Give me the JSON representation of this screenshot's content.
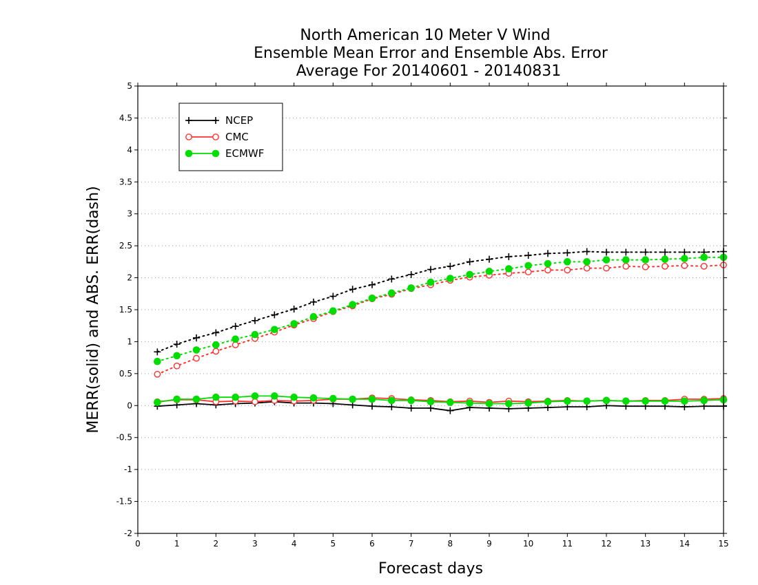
{
  "chart_data": {
    "type": "line",
    "title": [
      "North American 10 Meter V Wind",
      "Ensemble Mean Error and Ensemble Abs. Error",
      "Average For 20140601 - 20140831"
    ],
    "xlabel": "Forecast days",
    "ylabel": "MERR(solid) and ABS. ERR(dash)",
    "xlim": [
      0,
      15
    ],
    "ylim": [
      -2,
      5
    ],
    "xticks": [
      "0",
      "1",
      "2",
      "3",
      "4",
      "5",
      "6",
      "7",
      "8",
      "9",
      "10",
      "11",
      "12",
      "13",
      "14",
      "15"
    ],
    "yticks": [
      "-2",
      "-1.5",
      "-1",
      "-0.5",
      "0",
      "0.5",
      "1",
      "1.5",
      "2",
      "2.5",
      "3",
      "3.5",
      "4",
      "4.5",
      "5"
    ],
    "grid": "horizontal dotted",
    "legend_position": "top-left",
    "x": [
      0.5,
      1,
      1.5,
      2,
      2.5,
      3,
      3.5,
      4,
      4.5,
      5,
      5.5,
      6,
      6.5,
      7,
      7.5,
      8,
      8.5,
      9,
      9.5,
      10,
      10.5,
      11,
      11.5,
      12,
      12.5,
      13,
      13.5,
      14,
      14.5,
      15
    ],
    "series": [
      {
        "name": "NCEP",
        "color": "#000000",
        "marker": "plus",
        "solid": [
          -0.01,
          0.01,
          0.03,
          0.01,
          0.03,
          0.04,
          0.06,
          0.04,
          0.04,
          0.03,
          0.01,
          -0.01,
          -0.02,
          -0.04,
          -0.04,
          -0.08,
          -0.03,
          -0.04,
          -0.05,
          -0.04,
          -0.03,
          -0.02,
          -0.02,
          0.0,
          -0.01,
          -0.01,
          -0.01,
          -0.02,
          -0.01,
          -0.01
        ],
        "dash": [
          0.84,
          0.96,
          1.06,
          1.14,
          1.24,
          1.33,
          1.42,
          1.51,
          1.62,
          1.71,
          1.82,
          1.89,
          1.98,
          2.05,
          2.13,
          2.18,
          2.25,
          2.29,
          2.33,
          2.35,
          2.38,
          2.39,
          2.41,
          2.4,
          2.4,
          2.4,
          2.4,
          2.4,
          2.4,
          2.41
        ]
      },
      {
        "name": "CMC",
        "color": "#ff3030",
        "marker": "open-circle",
        "solid": [
          0.06,
          0.09,
          0.09,
          0.06,
          0.07,
          0.06,
          0.08,
          0.07,
          0.08,
          0.1,
          0.1,
          0.12,
          0.11,
          0.09,
          0.08,
          0.06,
          0.07,
          0.05,
          0.07,
          0.06,
          0.07,
          0.08,
          0.07,
          0.08,
          0.07,
          0.08,
          0.08,
          0.1,
          0.1,
          0.11
        ],
        "dash": [
          0.49,
          0.62,
          0.74,
          0.85,
          0.95,
          1.05,
          1.15,
          1.26,
          1.36,
          1.47,
          1.56,
          1.67,
          1.74,
          1.83,
          1.89,
          1.96,
          2.01,
          2.04,
          2.07,
          2.09,
          2.12,
          2.12,
          2.15,
          2.15,
          2.18,
          2.17,
          2.18,
          2.19,
          2.18,
          2.2
        ]
      },
      {
        "name": "ECMWF",
        "color": "#00dd00",
        "marker": "filled-circle",
        "solid": [
          0.05,
          0.1,
          0.1,
          0.13,
          0.13,
          0.15,
          0.15,
          0.13,
          0.12,
          0.11,
          0.1,
          0.1,
          0.08,
          0.08,
          0.06,
          0.05,
          0.04,
          0.03,
          0.03,
          0.04,
          0.06,
          0.07,
          0.07,
          0.08,
          0.07,
          0.07,
          0.07,
          0.07,
          0.08,
          0.09
        ],
        "dash": [
          0.69,
          0.78,
          0.87,
          0.95,
          1.04,
          1.11,
          1.19,
          1.28,
          1.39,
          1.48,
          1.58,
          1.68,
          1.76,
          1.84,
          1.93,
          1.99,
          2.05,
          2.1,
          2.14,
          2.19,
          2.22,
          2.25,
          2.25,
          2.28,
          2.28,
          2.28,
          2.29,
          2.3,
          2.32,
          2.32
        ]
      }
    ]
  }
}
